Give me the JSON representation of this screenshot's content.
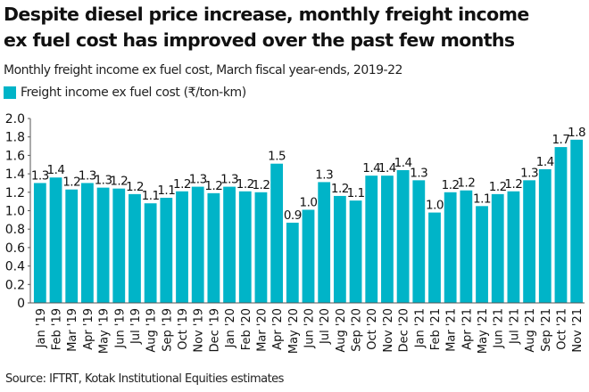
{
  "header": {
    "title_line1": "Despite diesel price increase, monthly freight income",
    "title_line2": "ex fuel cost has improved over the past few months",
    "subtitle": "Monthly freight income ex fuel cost, March fiscal year-ends, 2019-22"
  },
  "legend": {
    "label": "Freight income ex fuel cost (₹/ton-km)",
    "color": "#00b4c8"
  },
  "source": "Source: IFTRT, Kotak Institutional Equities estimates",
  "chart_data": {
    "type": "bar",
    "title": "Despite diesel price increase, monthly freight income ex fuel cost has improved over the past few months",
    "subtitle": "Monthly freight income ex fuel cost, March fiscal year-ends, 2019-22",
    "xlabel": "",
    "ylabel": "",
    "ylim": [
      0,
      2.0
    ],
    "yticks": [
      "0",
      "0.2",
      "0.4",
      "0.6",
      "0.8",
      "1.0",
      "1.2",
      "1.4",
      "1.6",
      "1.8",
      "2.0"
    ],
    "ytick_values": [
      0,
      0.2,
      0.4,
      0.6,
      0.8,
      1.0,
      1.2,
      1.4,
      1.6,
      1.8,
      2.0
    ],
    "grid": false,
    "legend_position": "top-left",
    "bar_color": "#00b4c8",
    "categories": [
      "Jan '19",
      "Feb '19",
      "Mar '19",
      "Apr '19",
      "May '19",
      "Jun '19",
      "Jul '19",
      "Aug '19",
      "Sep '19",
      "Oct '19",
      "Nov '19",
      "Dec '19",
      "Jan '20",
      "Feb '20",
      "Mar '20",
      "Apr '20",
      "May '20",
      "Jun '20",
      "Jul '20",
      "Aug '20",
      "Sep '20",
      "Oct '20",
      "Nov '20",
      "Dec '20",
      "Jan '21",
      "Feb '21",
      "Mar '21",
      "Apr '21",
      "May '21",
      "Jun '21",
      "Jul '21",
      "Aug '21",
      "Sep '21",
      "Oct '21",
      "Nov '21"
    ],
    "series": [
      {
        "name": "Freight income ex fuel cost (₹/ton-km)",
        "values": [
          1.3,
          1.36,
          1.23,
          1.3,
          1.25,
          1.24,
          1.18,
          1.08,
          1.14,
          1.21,
          1.26,
          1.19,
          1.26,
          1.21,
          1.2,
          1.51,
          0.87,
          1.01,
          1.31,
          1.16,
          1.11,
          1.38,
          1.38,
          1.44,
          1.33,
          0.98,
          1.2,
          1.22,
          1.05,
          1.18,
          1.21,
          1.33,
          1.45,
          1.69,
          1.77
        ],
        "labels": [
          "1.3",
          "1.4",
          "1.2",
          "1.3",
          "1.3",
          "1.2",
          "1.2",
          "1.1",
          "1.1",
          "1.2",
          "1.3",
          "1.2",
          "1.3",
          "1.2",
          "1.2",
          "1.5",
          "0.9",
          "1.0",
          "1.3",
          "1.2",
          "1.1",
          "1.4",
          "1.4",
          "1.4",
          "1.3",
          "1.0",
          "1.2",
          "1.2",
          "1.1",
          "1.2",
          "1.2",
          "1.3",
          "1.4",
          "1.7",
          "1.8"
        ]
      }
    ]
  }
}
